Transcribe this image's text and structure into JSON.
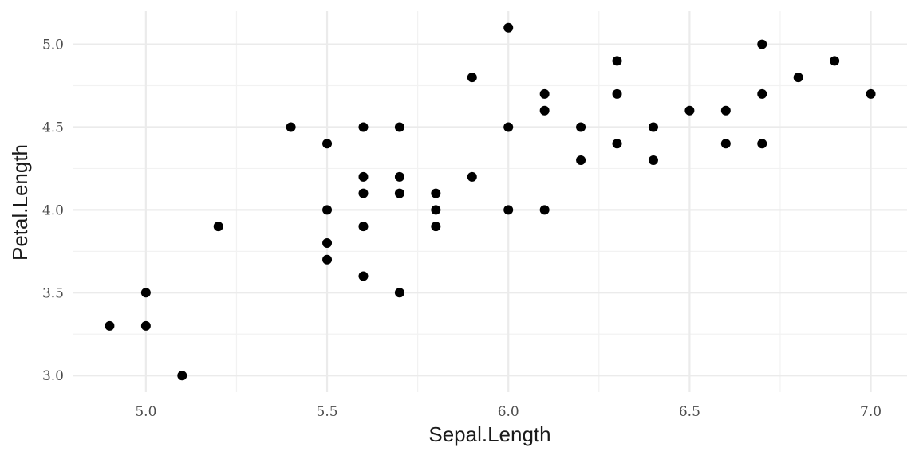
{
  "chart_data": {
    "type": "scatter",
    "xlabel": "Sepal.Length",
    "ylabel": "Petal.Length",
    "xlim": [
      4.8,
      7.1
    ],
    "ylim": [
      2.9,
      5.2
    ],
    "x_major_ticks": [
      5.0,
      5.5,
      6.0,
      6.5,
      7.0
    ],
    "x_tick_labels": [
      "5.0",
      "5.5",
      "6.0",
      "6.5",
      "7.0"
    ],
    "x_minor_ticks": [
      5.25,
      5.75,
      6.25,
      6.75
    ],
    "y_major_ticks": [
      3.0,
      3.5,
      4.0,
      4.5,
      5.0
    ],
    "y_tick_labels": [
      "3.0",
      "3.5",
      "4.0",
      "4.5",
      "5.0"
    ],
    "y_minor_ticks": [
      3.25,
      3.75,
      4.25,
      4.75
    ],
    "grid": true,
    "point_color": "#000000",
    "points": [
      [
        4.9,
        3.3
      ],
      [
        5.0,
        3.5
      ],
      [
        5.0,
        3.3
      ],
      [
        5.1,
        3.0
      ],
      [
        5.2,
        3.9
      ],
      [
        5.4,
        4.5
      ],
      [
        5.5,
        4.4
      ],
      [
        5.5,
        4.0
      ],
      [
        5.5,
        3.8
      ],
      [
        5.5,
        3.7
      ],
      [
        5.6,
        4.5
      ],
      [
        5.6,
        4.2
      ],
      [
        5.6,
        4.1
      ],
      [
        5.6,
        3.9
      ],
      [
        5.6,
        3.6
      ],
      [
        5.7,
        4.5
      ],
      [
        5.7,
        4.2
      ],
      [
        5.7,
        4.1
      ],
      [
        5.7,
        3.5
      ],
      [
        5.8,
        4.1
      ],
      [
        5.8,
        4.0
      ],
      [
        5.8,
        3.9
      ],
      [
        5.9,
        4.8
      ],
      [
        5.9,
        4.2
      ],
      [
        6.0,
        5.1
      ],
      [
        6.0,
        4.5
      ],
      [
        6.0,
        4.0
      ],
      [
        6.1,
        4.7
      ],
      [
        6.1,
        4.6
      ],
      [
        6.1,
        4.0
      ],
      [
        6.2,
        4.5
      ],
      [
        6.2,
        4.3
      ],
      [
        6.3,
        4.9
      ],
      [
        6.3,
        4.7
      ],
      [
        6.3,
        4.4
      ],
      [
        6.4,
        4.5
      ],
      [
        6.4,
        4.3
      ],
      [
        6.5,
        4.6
      ],
      [
        6.6,
        4.6
      ],
      [
        6.6,
        4.4
      ],
      [
        6.7,
        5.0
      ],
      [
        6.7,
        4.7
      ],
      [
        6.7,
        4.4
      ],
      [
        6.8,
        4.8
      ],
      [
        6.9,
        4.9
      ],
      [
        7.0,
        4.7
      ]
    ]
  }
}
